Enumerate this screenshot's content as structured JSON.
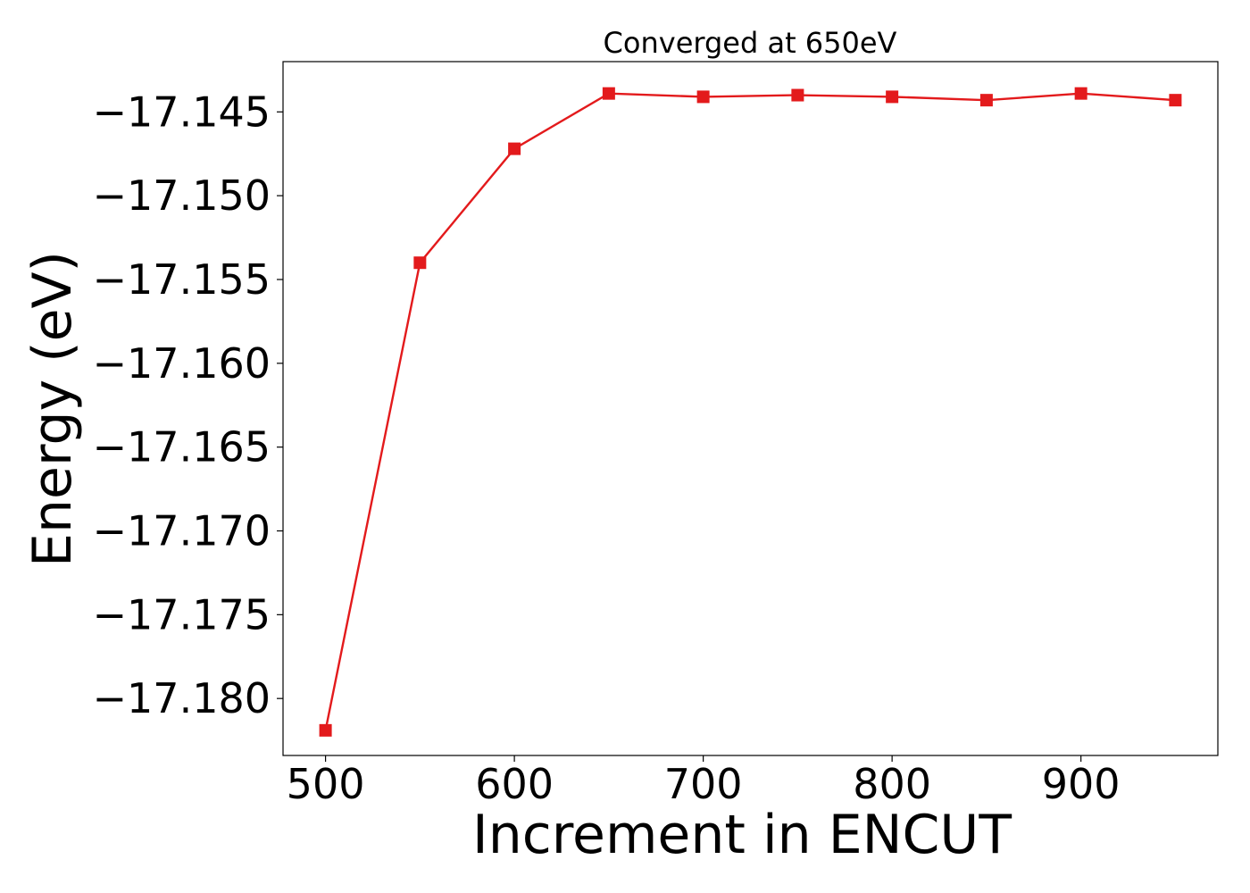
{
  "chart_data": {
    "type": "line",
    "title": "Converged at 650eV",
    "xlabel": "Increment in ENCUT",
    "ylabel": "Energy (eV)",
    "x": [
      500,
      550,
      600,
      650,
      700,
      750,
      800,
      850,
      900,
      950
    ],
    "series": [
      {
        "values": [
          -17.1819,
          -17.154,
          -17.1472,
          -17.1439,
          -17.1441,
          -17.144,
          -17.1441,
          -17.1443,
          -17.1439,
          -17.1443
        ],
        "color": "#e31a1c",
        "marker": "square"
      }
    ],
    "xlim": [
      477.5,
      972.5
    ],
    "ylim": [
      -17.1834,
      -17.142
    ],
    "xticks": [
      500,
      600,
      700,
      800,
      900
    ],
    "xtick_labels": [
      "500",
      "600",
      "700",
      "800",
      "900"
    ],
    "yticks": [
      -17.18,
      -17.175,
      -17.17,
      -17.165,
      -17.16,
      -17.155,
      -17.15,
      -17.145
    ],
    "ytick_labels": [
      "−17.180",
      "−17.175",
      "−17.170",
      "−17.165",
      "−17.160",
      "−17.155",
      "−17.150",
      "−17.145"
    ],
    "grid": false,
    "legend": "none"
  }
}
